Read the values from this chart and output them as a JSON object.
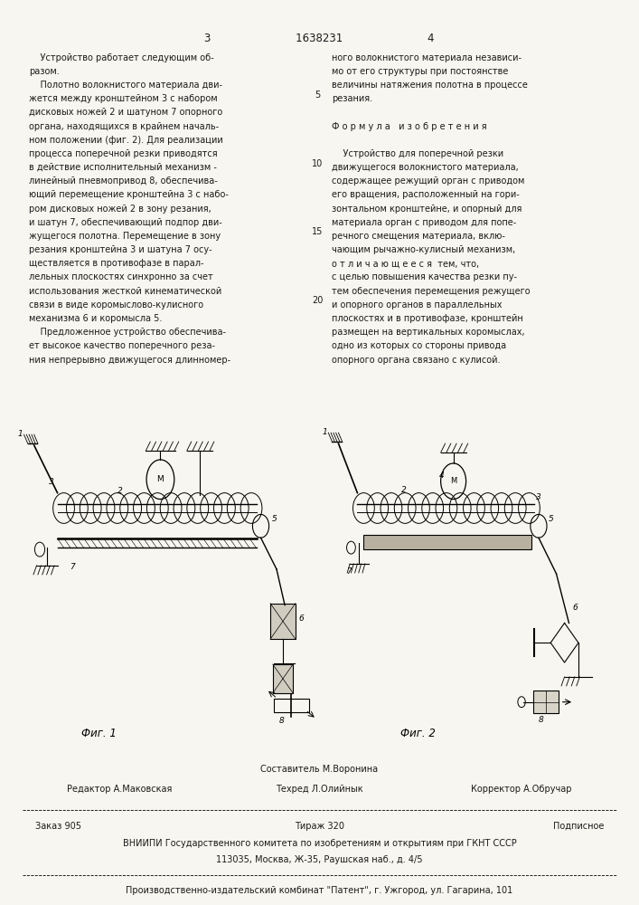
{
  "page_width": 7.07,
  "page_height": 10.0,
  "bg_color": "#f8f6f0",
  "text_color": "#1a1a1a",
  "header_line1": "3                         1638231                         4",
  "col1_lines": [
    "    Устройство работает следующим об-",
    "разом.",
    "    Полотно волокнистого материала дви-",
    "жется между кронштейном 3 с набором",
    "дисковых ножей 2 и шатуном 7 опорного",
    "органа, находящихся в крайнем началь-",
    "ном положении (фиг. 2). Для реализации",
    "процесса поперечной резки приводятся",
    "в действие исполнительный механизм -",
    "линейный пневмопривод 8, обеспечива-",
    "ющий перемещение кронштейна 3 с набо-",
    "ром дисковых ножей 2 в зону резания,",
    "и шатун 7, обеспечивающий подпор дви-",
    "жущегося полотна. Перемещение в зону",
    "резания кронштейна 3 и шатуна 7 осу-",
    "ществляется в противофазе в парал-",
    "лельных плоскостях синхронно за счет",
    "использования жесткой кинематической",
    "связи в виде коромыслово-кулисного",
    "механизма 6 и коромысла 5.",
    "    Предложенное устройство обеспечива-",
    "ет высокое качество поперечного реза-",
    "ния непрерывно движущегося длинномер-"
  ],
  "col2_lines": [
    "ного волокнистого материала независи-",
    "мо от его структуры при постоянстве",
    "величины натяжения полотна в процессе",
    "резания.",
    "",
    "Ф о р м у л а   и з о б р е т е н и я",
    "",
    "    Устройство для поперечной резки",
    "движущегося волокнистого материала,",
    "содержащее режущий орган с приводом",
    "его вращения, расположенный на гори-",
    "зонтальном кронштейне, и опорный для",
    "материала орган с приводом для попе-",
    "речного смещения материала, вклю-",
    "чающим рычажно-кулисный механизм,",
    "о т л и ч а ю щ е е с я  тем, что,",
    "с целью повышения качества резки пу-",
    "тем обеспечения перемещения режущего",
    "и опорного органов в параллельных",
    "плоскостях и в противофазе, кронштейн",
    "размещен на вертикальных коромыслах,",
    "одно из которых со стороны привода",
    "опорного органа связано с кулисой."
  ],
  "line_numbers": {
    "3": "5",
    "8": "10",
    "13": "15",
    "18": "20"
  },
  "fig1_label": "Фиг. 1",
  "fig2_label": "Фиг. 2",
  "footer_constituter": "Составитель М.Воронина",
  "footer_editor": "Редактор А.Маковская",
  "footer_techred": "Техред Л.Олийнык",
  "footer_corrector": "Корректор А.Обручар",
  "footer_order": "Заказ 905",
  "footer_print": "Тираж 320",
  "footer_subscription": "Подписное",
  "footer_vniipи": "ВНИИПИ Государственного комитета по изобретениям и открытиям при ГКНТ СССР",
  "footer_address": "113035, Москва, Ж-35, Раушская наб., д. 4/5",
  "footer_publisher": "Производственно-издательский комбинат \"Патент\", г. Ужгород, ул. Гагарина, 101"
}
